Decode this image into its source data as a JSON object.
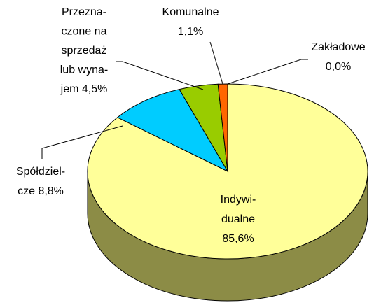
{
  "chart_data": {
    "type": "pie3d",
    "categories": [
      [
        "Indywi-",
        "dualne"
      ],
      [
        "Spółdziel-",
        "cze"
      ],
      [
        "Przezna-",
        "czone na",
        "sprzedaż",
        "lub wyna-",
        "jem"
      ],
      [
        "Komunalne"
      ],
      [
        "Zakładowe"
      ]
    ],
    "values": [
      85.6,
      8.8,
      4.5,
      1.1,
      0.0
    ],
    "value_labels": [
      "85,6%",
      "8,8%",
      "4,5%",
      "1,1%",
      "0,0%"
    ],
    "colors": [
      "#ffff99",
      "#00ccff",
      "#99cc00",
      "#ff6600",
      "#ff0000"
    ],
    "side_color": "#8c8c46"
  }
}
